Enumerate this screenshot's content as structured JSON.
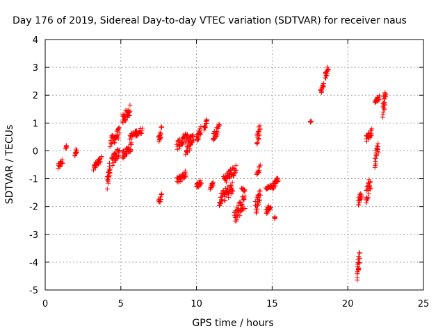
{
  "chart_data": {
    "type": "scatter",
    "title": "Day 176 of 2019, Sidereal Day-to-day VTEC variation (SDTVAR) for receiver naus",
    "xlabel": "GPS time / hours",
    "ylabel": "SDTVAR / TECUs",
    "xlim": [
      0,
      25
    ],
    "ylim": [
      -5,
      4
    ],
    "xticks": [
      0,
      5,
      10,
      15,
      20,
      25
    ],
    "yticks": [
      -5,
      -4,
      -3,
      -2,
      -1,
      0,
      1,
      2,
      3,
      4
    ],
    "grid": true,
    "marker": "+",
    "color": "#ff0000",
    "clusters": [
      {
        "x": [
          0.85,
          1.15
        ],
        "y": [
          -0.7,
          -0.25
        ]
      },
      {
        "x": [
          1.35,
          1.4
        ],
        "y": [
          0.05,
          0.2
        ]
      },
      {
        "x": [
          1.95,
          2.1
        ],
        "y": [
          -0.2,
          0.15
        ]
      },
      {
        "x": [
          3.2,
          3.7
        ],
        "y": [
          -0.75,
          -0.2
        ]
      },
      {
        "x": [
          4.1,
          4.3
        ],
        "y": [
          -1.4,
          -0.3
        ]
      },
      {
        "x": [
          4.3,
          4.9
        ],
        "y": [
          0.1,
          0.85
        ]
      },
      {
        "x": [
          4.4,
          4.9
        ],
        "y": [
          -0.6,
          0.2
        ]
      },
      {
        "x": [
          5.1,
          5.6
        ],
        "y": [
          0.9,
          1.65
        ]
      },
      {
        "x": [
          5.1,
          5.7
        ],
        "y": [
          -0.3,
          0.3
        ]
      },
      {
        "x": [
          5.6,
          6.4
        ],
        "y": [
          0.4,
          0.85
        ]
      },
      {
        "x": [
          7.5,
          7.7
        ],
        "y": [
          0.3,
          0.9
        ]
      },
      {
        "x": [
          7.5,
          7.7
        ],
        "y": [
          -1.95,
          -1.5
        ]
      },
      {
        "x": [
          8.7,
          9.4
        ],
        "y": [
          0.0,
          0.7
        ]
      },
      {
        "x": [
          8.7,
          9.3
        ],
        "y": [
          -1.2,
          -0.7
        ]
      },
      {
        "x": [
          9.3,
          9.8
        ],
        "y": [
          -0.2,
          0.8
        ]
      },
      {
        "x": [
          10.0,
          10.3
        ],
        "y": [
          -1.4,
          -1.0
        ]
      },
      {
        "x": [
          10.0,
          10.3
        ],
        "y": [
          0.3,
          0.9
        ]
      },
      {
        "x": [
          10.5,
          10.7
        ],
        "y": [
          0.7,
          1.2
        ]
      },
      {
        "x": [
          10.9,
          11.1
        ],
        "y": [
          -1.4,
          -1.1
        ]
      },
      {
        "x": [
          11.1,
          11.5
        ],
        "y": [
          0.3,
          1.0
        ]
      },
      {
        "x": [
          11.5,
          12.4
        ],
        "y": [
          -2.0,
          -1.1
        ]
      },
      {
        "x": [
          11.8,
          12.6
        ],
        "y": [
          -1.2,
          -0.5
        ]
      },
      {
        "x": [
          12.5,
          13.2
        ],
        "y": [
          -2.65,
          -1.5
        ]
      },
      {
        "x": [
          13.0,
          13.2
        ],
        "y": [
          -1.3,
          -1.5
        ]
      },
      {
        "x": [
          13.9,
          14.2
        ],
        "y": [
          -2.3,
          -1.3
        ]
      },
      {
        "x": [
          14.0,
          14.2
        ],
        "y": [
          0.2,
          1.0
        ]
      },
      {
        "x": [
          14.0,
          14.2
        ],
        "y": [
          -0.9,
          -0.5
        ]
      },
      {
        "x": [
          14.6,
          14.9
        ],
        "y": [
          -2.3,
          -1.9
        ]
      },
      {
        "x": [
          14.6,
          15.0
        ],
        "y": [
          -1.4,
          -1.2
        ]
      },
      {
        "x": [
          15.0,
          15.4
        ],
        "y": [
          -1.4,
          -0.9
        ]
      },
      {
        "x": [
          15.15,
          15.2
        ],
        "y": [
          -2.45,
          -2.35
        ]
      },
      {
        "x": [
          17.5,
          17.6
        ],
        "y": [
          1.0,
          1.1
        ]
      },
      {
        "x": [
          18.2,
          18.4
        ],
        "y": [
          2.0,
          2.5
        ]
      },
      {
        "x": [
          18.5,
          18.7
        ],
        "y": [
          2.5,
          3.1
        ]
      },
      {
        "x": [
          20.6,
          20.8
        ],
        "y": [
          -4.65,
          -3.5
        ]
      },
      {
        "x": [
          20.7,
          20.9
        ],
        "y": [
          -2.0,
          -1.4
        ]
      },
      {
        "x": [
          21.2,
          21.5
        ],
        "y": [
          -1.9,
          -0.9
        ]
      },
      {
        "x": [
          21.2,
          21.6
        ],
        "y": [
          0.3,
          0.8
        ]
      },
      {
        "x": [
          21.8,
          22.0
        ],
        "y": [
          -0.6,
          0.4
        ]
      },
      {
        "x": [
          21.8,
          22.1
        ],
        "y": [
          1.7,
          2.0
        ]
      },
      {
        "x": [
          22.3,
          22.5
        ],
        "y": [
          1.2,
          2.25
        ]
      }
    ]
  }
}
